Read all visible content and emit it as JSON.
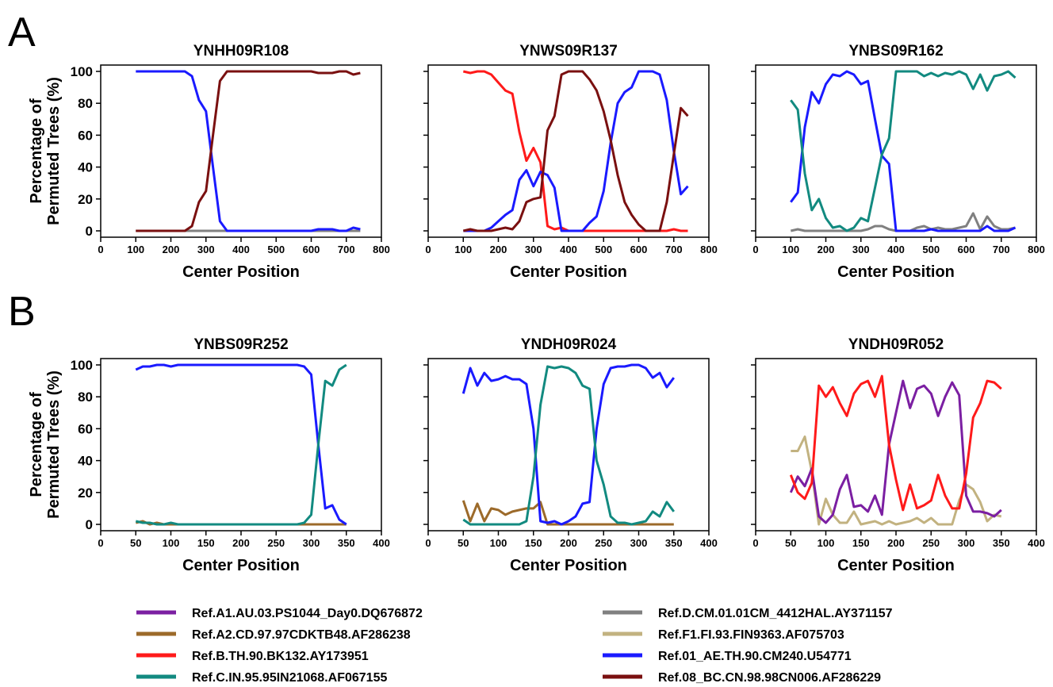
{
  "panel_labels": [
    "A",
    "B"
  ],
  "colors": {
    "Ref.A1.AU.03.PS1044_Day0.DQ676872": "#7B1FA2",
    "Ref.A2.CD.97.97CDKTB48.AF286238": "#9C6A2A",
    "Ref.B.TH.90.BK132.AY173951": "#FF1A1A",
    "Ref.C.IN.95.95IN21068.AF067155": "#128A80",
    "Ref.D.CM.01.01CM_4412HAL.AY371157": "#808080",
    "Ref.F1.FI.93.FIN9363.AF075703": "#C2B280",
    "Ref.01_AE.TH.90.CM240.U54771": "#1A1AFF",
    "Ref.08_BC.CN.98.98CN006.AF286229": "#7A1010"
  },
  "legend": {
    "left": [
      "Ref.A1.AU.03.PS1044_Day0.DQ676872",
      "Ref.A2.CD.97.97CDKTB48.AF286238",
      "Ref.B.TH.90.BK132.AY173951",
      "Ref.C.IN.95.95IN21068.AF067155"
    ],
    "right": [
      "Ref.D.CM.01.01CM_4412HAL.AY371157",
      "Ref.F1.FI.93.FIN9363.AF075703",
      "Ref.01_AE.TH.90.CM240.U54771",
      "Ref.08_BC.CN.98.98CN006.AF286229"
    ]
  },
  "chart_data": [
    {
      "type": "line",
      "title": "YNHH09R108",
      "xlabel": "Center Position",
      "ylabel": "Percentage of Permuted Trees (%)",
      "xlim": [
        0,
        800
      ],
      "xticks": [
        0,
        100,
        200,
        300,
        400,
        500,
        600,
        700,
        800
      ],
      "ylim": [
        0,
        100
      ],
      "yticks": [
        0,
        20,
        40,
        60,
        80,
        100
      ],
      "grid": false,
      "x": [
        100,
        120,
        140,
        160,
        180,
        200,
        220,
        240,
        260,
        280,
        300,
        320,
        340,
        360,
        380,
        400,
        420,
        440,
        460,
        480,
        500,
        520,
        540,
        560,
        580,
        600,
        620,
        640,
        660,
        680,
        700,
        720,
        740
      ],
      "series": [
        {
          "name": "Ref.D.CM.01.01CM_4412HAL.AY371157",
          "values": [
            0,
            0,
            0,
            0,
            0,
            0,
            0,
            0,
            0,
            0,
            0,
            0,
            0,
            0,
            0,
            0,
            0,
            0,
            0,
            0,
            0,
            0,
            0,
            0,
            0,
            0,
            0,
            0,
            0,
            0,
            0,
            0,
            0
          ]
        },
        {
          "name": "Ref.01_AE.TH.90.CM240.U54771",
          "values": [
            100,
            100,
            100,
            100,
            100,
            100,
            100,
            100,
            97,
            82,
            75,
            40,
            6,
            0,
            0,
            0,
            0,
            0,
            0,
            0,
            0,
            0,
            0,
            0,
            0,
            0,
            1,
            1,
            1,
            0,
            0,
            2,
            1
          ]
        },
        {
          "name": "Ref.08_BC.CN.98.98CN006.AF286229",
          "values": [
            0,
            0,
            0,
            0,
            0,
            0,
            0,
            0,
            3,
            18,
            25,
            60,
            94,
            100,
            100,
            100,
            100,
            100,
            100,
            100,
            100,
            100,
            100,
            100,
            100,
            100,
            99,
            99,
            99,
            100,
            100,
            98,
            99
          ]
        }
      ]
    },
    {
      "type": "line",
      "title": "YNWS09R137",
      "xlabel": "Center Position",
      "ylabel": "",
      "xlim": [
        0,
        800
      ],
      "xticks": [
        0,
        100,
        200,
        300,
        400,
        500,
        600,
        700,
        800
      ],
      "ylim": [
        0,
        100
      ],
      "yticks": [
        0,
        20,
        40,
        60,
        80,
        100
      ],
      "grid": false,
      "x": [
        100,
        120,
        140,
        160,
        180,
        200,
        220,
        240,
        260,
        280,
        300,
        320,
        340,
        360,
        380,
        400,
        420,
        440,
        460,
        480,
        500,
        520,
        540,
        560,
        580,
        600,
        620,
        640,
        660,
        680,
        700,
        720,
        740
      ],
      "series": [
        {
          "name": "Ref.B.TH.90.BK132.AY173951",
          "values": [
            100,
            99,
            100,
            100,
            98,
            93,
            88,
            86,
            62,
            44,
            52,
            43,
            3,
            1,
            2,
            0,
            0,
            0,
            0,
            0,
            0,
            0,
            0,
            0,
            0,
            0,
            0,
            0,
            0,
            0,
            1,
            0,
            0
          ]
        },
        {
          "name": "Ref.01_AE.TH.90.CM240.U54771",
          "values": [
            0,
            0,
            0,
            0,
            2,
            6,
            10,
            13,
            32,
            38,
            28,
            37,
            35,
            27,
            0,
            0,
            0,
            0,
            5,
            9,
            25,
            55,
            80,
            87,
            90,
            100,
            100,
            100,
            98,
            82,
            50,
            23,
            28
          ]
        },
        {
          "name": "Ref.08_BC.CN.98.98CN006.AF286229",
          "values": [
            0,
            1,
            0,
            0,
            0,
            1,
            2,
            1,
            6,
            18,
            20,
            21,
            63,
            72,
            98,
            100,
            100,
            100,
            95,
            88,
            75,
            57,
            35,
            18,
            10,
            4,
            0,
            0,
            0,
            18,
            48,
            77,
            72
          ]
        }
      ]
    },
    {
      "type": "line",
      "title": "YNBS09R162",
      "xlabel": "Center Position",
      "ylabel": "",
      "xlim": [
        0,
        800
      ],
      "xticks": [
        0,
        100,
        200,
        300,
        400,
        500,
        600,
        700,
        800
      ],
      "ylim": [
        0,
        100
      ],
      "yticks": [
        0,
        20,
        40,
        60,
        80,
        100
      ],
      "grid": false,
      "x": [
        100,
        120,
        140,
        160,
        180,
        200,
        220,
        240,
        260,
        280,
        300,
        320,
        340,
        360,
        380,
        400,
        420,
        440,
        460,
        480,
        500,
        520,
        540,
        560,
        580,
        600,
        620,
        640,
        660,
        680,
        700,
        720,
        740
      ],
      "series": [
        {
          "name": "Ref.D.CM.01.01CM_4412HAL.AY371157",
          "values": [
            0,
            1,
            0,
            0,
            0,
            0,
            0,
            0,
            0,
            0,
            0,
            1,
            3,
            3,
            1,
            0,
            0,
            0,
            2,
            3,
            1,
            2,
            1,
            1,
            2,
            3,
            11,
            1,
            9,
            3,
            1,
            1,
            2
          ]
        },
        {
          "name": "Ref.01_AE.TH.90.CM240.U54771",
          "values": [
            18,
            24,
            65,
            87,
            80,
            92,
            98,
            97,
            100,
            98,
            92,
            94,
            70,
            47,
            42,
            0,
            0,
            0,
            0,
            0,
            1,
            0,
            0,
            0,
            0,
            0,
            0,
            0,
            3,
            0,
            0,
            0,
            2
          ]
        },
        {
          "name": "Ref.C.IN.95.95IN21068.AF067155",
          "values": [
            82,
            76,
            36,
            13,
            20,
            8,
            2,
            3,
            0,
            2,
            8,
            6,
            27,
            48,
            58,
            100,
            100,
            100,
            100,
            97,
            99,
            97,
            99,
            98,
            100,
            98,
            89,
            98,
            88,
            97,
            98,
            100,
            96
          ]
        }
      ]
    },
    {
      "type": "line",
      "title": "YNBS09R252",
      "xlabel": "Center Position",
      "ylabel": "Percentage of Permuted Trees (%)",
      "xlim": [
        0,
        400
      ],
      "xticks": [
        0,
        50,
        100,
        150,
        200,
        250,
        300,
        350,
        400
      ],
      "ylim": [
        0,
        100
      ],
      "yticks": [
        0,
        20,
        40,
        60,
        80,
        100
      ],
      "grid": false,
      "x": [
        50,
        60,
        70,
        80,
        90,
        100,
        110,
        120,
        130,
        140,
        150,
        160,
        170,
        180,
        190,
        200,
        210,
        220,
        230,
        240,
        250,
        260,
        270,
        280,
        290,
        300,
        310,
        320,
        330,
        340,
        350
      ],
      "series": [
        {
          "name": "Ref.A2.CD.97.97CDKTB48.AF286238",
          "values": [
            1,
            2,
            0,
            1,
            0,
            0,
            0,
            0,
            0,
            0,
            0,
            0,
            0,
            0,
            0,
            0,
            0,
            0,
            0,
            0,
            0,
            0,
            0,
            0,
            0,
            0,
            0,
            0,
            0,
            0,
            0
          ]
        },
        {
          "name": "Ref.01_AE.TH.90.CM240.U54771",
          "values": [
            97,
            99,
            99,
            100,
            100,
            99,
            100,
            100,
            100,
            100,
            100,
            100,
            100,
            100,
            100,
            100,
            100,
            100,
            100,
            100,
            100,
            100,
            100,
            100,
            99,
            94,
            50,
            10,
            12,
            3,
            0
          ]
        },
        {
          "name": "Ref.C.IN.95.95IN21068.AF067155",
          "values": [
            2,
            1,
            1,
            0,
            0,
            1,
            0,
            0,
            0,
            0,
            0,
            0,
            0,
            0,
            0,
            0,
            0,
            0,
            0,
            0,
            0,
            0,
            0,
            0,
            1,
            6,
            50,
            90,
            87,
            97,
            100
          ]
        }
      ]
    },
    {
      "type": "line",
      "title": "YNDH09R024",
      "xlabel": "Center Position",
      "ylabel": "",
      "xlim": [
        0,
        400
      ],
      "xticks": [
        0,
        50,
        100,
        150,
        200,
        250,
        300,
        350,
        400
      ],
      "ylim": [
        0,
        100
      ],
      "yticks": [
        0,
        20,
        40,
        60,
        80,
        100
      ],
      "grid": false,
      "x": [
        50,
        60,
        70,
        80,
        90,
        100,
        110,
        120,
        130,
        140,
        150,
        160,
        170,
        180,
        190,
        200,
        210,
        220,
        230,
        240,
        250,
        260,
        270,
        280,
        290,
        300,
        310,
        320,
        330,
        340,
        350
      ],
      "series": [
        {
          "name": "Ref.A2.CD.97.97CDKTB48.AF286238",
          "values": [
            15,
            2,
            13,
            2,
            10,
            9,
            6,
            8,
            9,
            10,
            10,
            14,
            0,
            0,
            0,
            0,
            0,
            0,
            0,
            0,
            0,
            0,
            0,
            0,
            0,
            0,
            0,
            0,
            0,
            0,
            0
          ]
        },
        {
          "name": "Ref.01_AE.TH.90.CM240.U54771",
          "values": [
            82,
            98,
            87,
            95,
            90,
            91,
            93,
            91,
            91,
            88,
            60,
            2,
            1,
            2,
            0,
            2,
            5,
            13,
            14,
            60,
            88,
            98,
            99,
            99,
            100,
            100,
            98,
            92,
            95,
            86,
            92
          ]
        },
        {
          "name": "Ref.C.IN.95.95IN21068.AF067155",
          "values": [
            3,
            0,
            0,
            0,
            0,
            0,
            0,
            0,
            0,
            2,
            30,
            75,
            99,
            98,
            99,
            98,
            95,
            87,
            85,
            40,
            25,
            5,
            1,
            1,
            0,
            1,
            2,
            8,
            5,
            14,
            8
          ]
        }
      ]
    },
    {
      "type": "line",
      "title": "YNDH09R052",
      "xlabel": "Center Position",
      "ylabel": "",
      "xlim": [
        0,
        400
      ],
      "xticks": [
        0,
        50,
        100,
        150,
        200,
        250,
        300,
        350,
        400
      ],
      "ylim": [
        0,
        100
      ],
      "yticks": [
        0,
        20,
        40,
        60,
        80,
        100
      ],
      "grid": false,
      "x": [
        50,
        60,
        70,
        80,
        90,
        100,
        110,
        120,
        130,
        140,
        150,
        160,
        170,
        180,
        190,
        200,
        210,
        220,
        230,
        240,
        250,
        260,
        270,
        280,
        290,
        300,
        310,
        320,
        330,
        340,
        350
      ],
      "series": [
        {
          "name": "Ref.F1.FI.93.FIN9363.AF075703",
          "values": [
            46,
            46,
            55,
            33,
            0,
            16,
            6,
            1,
            1,
            8,
            0,
            1,
            2,
            0,
            2,
            0,
            1,
            2,
            4,
            1,
            4,
            0,
            0,
            0,
            15,
            25,
            22,
            14,
            2,
            6,
            5
          ]
        },
        {
          "name": "Ref.A1.AU.03.PS1044_Day0.DQ676872",
          "values": [
            20,
            30,
            24,
            35,
            5,
            1,
            6,
            22,
            31,
            11,
            12,
            8,
            18,
            6,
            50,
            70,
            90,
            73,
            85,
            87,
            82,
            68,
            80,
            89,
            81,
            18,
            8,
            8,
            7,
            5,
            9
          ]
        },
        {
          "name": "Ref.B.TH.90.BK132.AY173951",
          "values": [
            31,
            20,
            16,
            26,
            87,
            80,
            86,
            76,
            68,
            82,
            88,
            90,
            80,
            93,
            50,
            28,
            9,
            25,
            10,
            12,
            15,
            31,
            18,
            10,
            10,
            32,
            67,
            76,
            90,
            89,
            85
          ]
        }
      ]
    }
  ]
}
